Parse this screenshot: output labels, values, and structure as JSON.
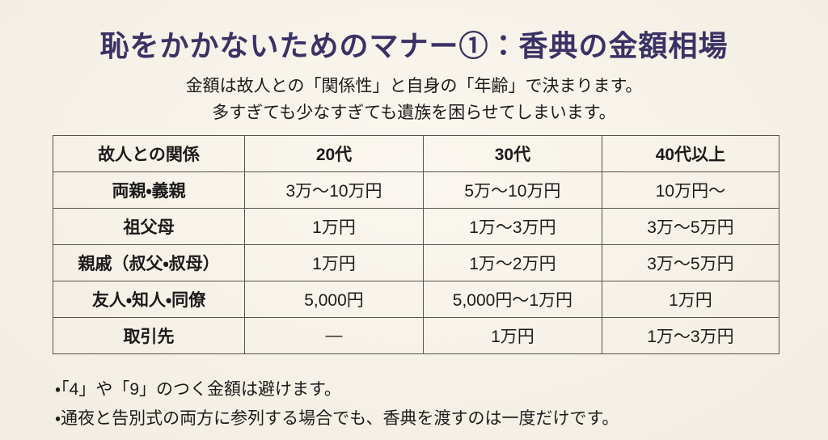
{
  "header": {
    "title": "恥をかかないためのマナー①：香典の金額相場",
    "subtitle_line1": "金額は故人との「関係性」と自身の「年齢」で決まります。",
    "subtitle_line2": "多すぎても少なすぎても遺族を困らせてしまいます。"
  },
  "table": {
    "columns": [
      "故人との関係",
      "20代",
      "30代",
      "40代以上"
    ],
    "rows": [
      [
        "両親・義親",
        "3万〜10万円",
        "5万〜10万円",
        "10万円〜"
      ],
      [
        "祖父母",
        "1万円",
        "1万〜3万円",
        "3万〜5万円"
      ],
      [
        "親戚（叔父・叔母）",
        "1万円",
        "1万〜2万円",
        "3万〜5万円"
      ],
      [
        "友人・知人・同僚",
        "5,000円",
        "5,000円〜1万円",
        "1万円"
      ],
      [
        "取引先",
        "―",
        "1万円",
        "1万〜3万円"
      ]
    ]
  },
  "notes": [
    "・「4」や「9」のつく金額は避けます。",
    "・通夜と告別式の両方に参列する場合でも、香典を渡すのは一度だけです。"
  ],
  "colors": {
    "bg": "#f8f3e8",
    "title": "#3a3264",
    "text": "#1b1b1b",
    "border": "#56534d"
  }
}
